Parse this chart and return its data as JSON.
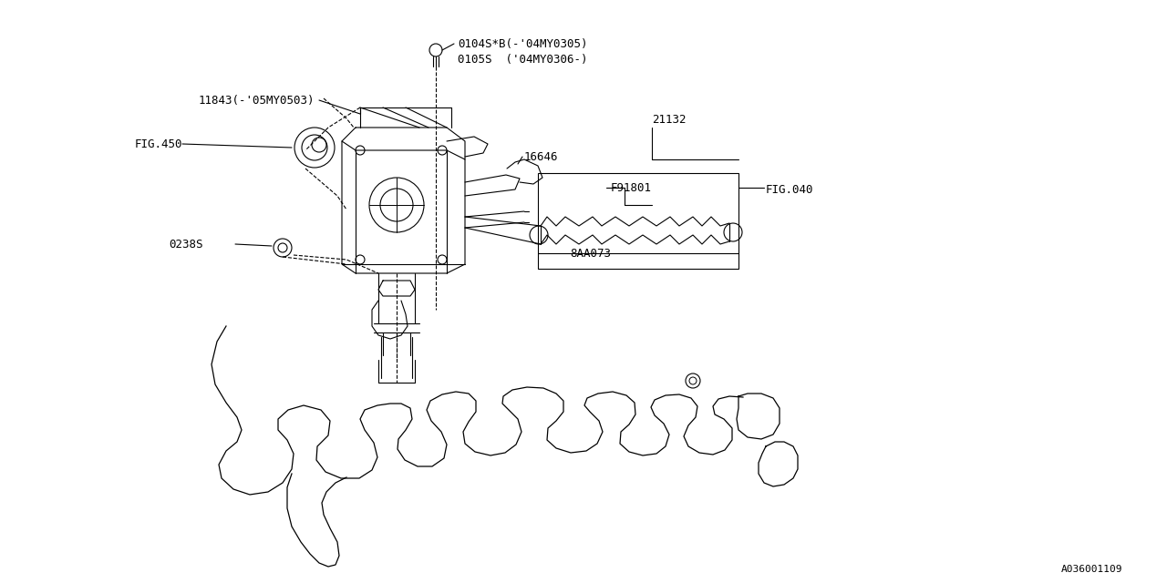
{
  "bg_color": "#ffffff",
  "line_color": "#000000",
  "fig_width": 12.8,
  "fig_height": 6.4,
  "diagram_id": "A036001109",
  "labels": {
    "bolt_label1": "0104S*B(-'04MY0305)",
    "bolt_label2": "0105S  ('04MY0306-)",
    "part_11843": "11843(-'05MY0503)",
    "part_fig450": "FIG.450",
    "part_16646": "16646",
    "part_21132": "21132",
    "part_f91801": "F91801",
    "part_fig040": "FIG.040",
    "part_8aa073": "8AA073",
    "part_0238s": "0238S"
  },
  "font_size_label": 9,
  "font_size_id": 8
}
